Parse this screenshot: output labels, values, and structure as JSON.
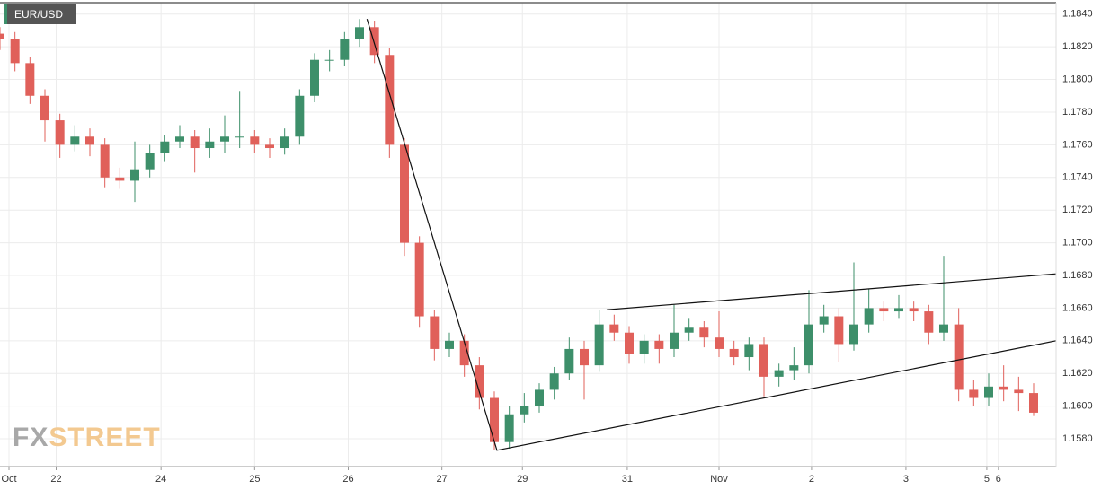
{
  "chart_data": {
    "type": "candlestick",
    "title": "EUR/USD",
    "watermark": [
      "FX",
      "STREET"
    ],
    "up_color": "#3d8f6a",
    "down_color": "#e0605a",
    "grid": true,
    "x": [
      0,
      4,
      8,
      12,
      16,
      20,
      24,
      28,
      32,
      36,
      40,
      44,
      48,
      52,
      56,
      60,
      64,
      68,
      72,
      76,
      80,
      84,
      88,
      92,
      96,
      100,
      104,
      108,
      112,
      116,
      120,
      124,
      128,
      132,
      136,
      140,
      144,
      148,
      152,
      156,
      160,
      164,
      168,
      172,
      176,
      180,
      184,
      188,
      192,
      196,
      200,
      204,
      208,
      212,
      216,
      220,
      224,
      228,
      232,
      236,
      240,
      244,
      248,
      252,
      256,
      260,
      264,
      268,
      272,
      276
    ],
    "open": [
      1.1828,
      1.1825,
      1.181,
      1.179,
      1.1775,
      1.176,
      1.1765,
      1.176,
      1.174,
      1.1738,
      1.1745,
      1.1755,
      1.1762,
      1.1765,
      1.1758,
      1.1762,
      1.1765,
      1.1765,
      1.176,
      1.1758,
      1.1765,
      1.179,
      1.1812,
      1.1812,
      1.1825,
      1.1832,
      1.1815,
      1.176,
      1.17,
      1.1655,
      1.1635,
      1.164,
      1.1625,
      1.1605,
      1.1578,
      1.1595,
      1.16,
      1.161,
      1.162,
      1.1635,
      1.1625,
      1.165,
      1.1645,
      1.1632,
      1.164,
      1.1635,
      1.1645,
      1.1648,
      1.1642,
      1.1635,
      1.163,
      1.1638,
      1.1618,
      1.1622,
      1.1625,
      1.165,
      1.1655,
      1.1638,
      1.165,
      1.166,
      1.1658,
      1.166,
      1.1658,
      1.1645,
      1.165,
      1.161,
      1.1605,
      1.1612,
      1.161,
      1.1608
    ],
    "high": [
      1.1832,
      1.1829,
      1.1814,
      1.1794,
      1.1779,
      1.1772,
      1.177,
      1.1764,
      1.1746,
      1.1762,
      1.176,
      1.1766,
      1.1772,
      1.1769,
      1.177,
      1.1778,
      1.1793,
      1.1769,
      1.1764,
      1.177,
      1.1794,
      1.1816,
      1.1818,
      1.1829,
      1.1837,
      1.1836,
      1.1819,
      1.1764,
      1.1704,
      1.1659,
      1.1645,
      1.1644,
      1.163,
      1.1609,
      1.16,
      1.1608,
      1.1614,
      1.1624,
      1.1642,
      1.164,
      1.1659,
      1.1656,
      1.1649,
      1.1644,
      1.1644,
      1.1662,
      1.1654,
      1.1652,
      1.1658,
      1.164,
      1.1642,
      1.1642,
      1.1626,
      1.1636,
      1.1671,
      1.1662,
      1.166,
      1.1688,
      1.1672,
      1.1664,
      1.1668,
      1.1664,
      1.1662,
      1.1692,
      1.166,
      1.1616,
      1.162,
      1.1625,
      1.1618,
      1.1614
    ],
    "low": [
      1.1818,
      1.1805,
      1.1785,
      1.1762,
      1.1752,
      1.1756,
      1.1753,
      1.1734,
      1.1733,
      1.1725,
      1.174,
      1.175,
      1.1758,
      1.1743,
      1.1752,
      1.1755,
      1.1758,
      1.1755,
      1.1752,
      1.1754,
      1.176,
      1.1786,
      1.1805,
      1.1808,
      1.182,
      1.181,
      1.1752,
      1.1692,
      1.1648,
      1.1628,
      1.163,
      1.1618,
      1.1598,
      1.1573,
      1.1574,
      1.159,
      1.1596,
      1.1604,
      1.1616,
      1.1604,
      1.1621,
      1.164,
      1.1626,
      1.1626,
      1.1626,
      1.163,
      1.164,
      1.1636,
      1.163,
      1.1625,
      1.1622,
      1.1606,
      1.1612,
      1.1616,
      1.162,
      1.1645,
      1.1627,
      1.1634,
      1.1645,
      1.1652,
      1.1654,
      1.1652,
      1.1638,
      1.164,
      1.1603,
      1.16,
      1.16,
      1.1603,
      1.1597,
      1.1594
    ],
    "close": [
      1.1825,
      1.181,
      1.179,
      1.1775,
      1.176,
      1.1765,
      1.176,
      1.174,
      1.1738,
      1.1745,
      1.1755,
      1.1762,
      1.1765,
      1.1758,
      1.1762,
      1.1765,
      1.1765,
      1.176,
      1.1758,
      1.1765,
      1.179,
      1.1812,
      1.1812,
      1.1825,
      1.1832,
      1.1815,
      1.176,
      1.17,
      1.1655,
      1.1635,
      1.164,
      1.1625,
      1.1605,
      1.1578,
      1.1595,
      1.16,
      1.161,
      1.162,
      1.1635,
      1.1625,
      1.165,
      1.1645,
      1.1632,
      1.164,
      1.1635,
      1.1645,
      1.1648,
      1.1642,
      1.1635,
      1.163,
      1.1638,
      1.1618,
      1.1622,
      1.1625,
      1.165,
      1.1655,
      1.1638,
      1.165,
      1.166,
      1.1658,
      1.166,
      1.1658,
      1.1645,
      1.165,
      1.161,
      1.1605,
      1.1612,
      1.161,
      1.1608,
      1.1596
    ],
    "trendlines": [
      {
        "x": [
          98,
          132.7,
          282
        ],
        "y": [
          1.1837,
          1.1573,
          1.164
        ]
      },
      {
        "x": [
          162,
          282
        ],
        "y": [
          1.1659,
          1.1681
        ]
      }
    ],
    "xlim": [
      0,
      282
    ],
    "xticks": [
      {
        "value": 2.4,
        "label": "Oct"
      },
      {
        "value": 15,
        "label": "22"
      },
      {
        "value": 43,
        "label": "24"
      },
      {
        "value": 68,
        "label": "25"
      },
      {
        "value": 93,
        "label": "26"
      },
      {
        "value": 118,
        "label": "27"
      },
      {
        "value": 139.5,
        "label": "29"
      },
      {
        "value": 167.5,
        "label": "31"
      },
      {
        "value": 192,
        "label": "Nov"
      },
      {
        "value": 216.7,
        "label": "2"
      },
      {
        "value": 241.9,
        "label": "3"
      },
      {
        "value": 263.5,
        "label": "5"
      },
      {
        "value": 266.6,
        "label": "6"
      }
    ],
    "ylim": [
      1.1563,
      1.1847
    ],
    "yticks": [
      {
        "value": 1.158,
        "label": "1.1580"
      },
      {
        "value": 1.16,
        "label": "1.1600"
      },
      {
        "value": 1.162,
        "label": "1.1620"
      },
      {
        "value": 1.164,
        "label": "1.1640"
      },
      {
        "value": 1.166,
        "label": "1.1660"
      },
      {
        "value": 1.168,
        "label": "1.1680"
      },
      {
        "value": 1.17,
        "label": "1.1700"
      },
      {
        "value": 1.172,
        "label": "1.1720"
      },
      {
        "value": 1.174,
        "label": "1.1740"
      },
      {
        "value": 1.176,
        "label": "1.1760"
      },
      {
        "value": 1.178,
        "label": "1.1780"
      },
      {
        "value": 1.18,
        "label": "1.1800"
      },
      {
        "value": 1.182,
        "label": "1.1820"
      },
      {
        "value": 1.184,
        "label": "1.1840"
      }
    ]
  }
}
